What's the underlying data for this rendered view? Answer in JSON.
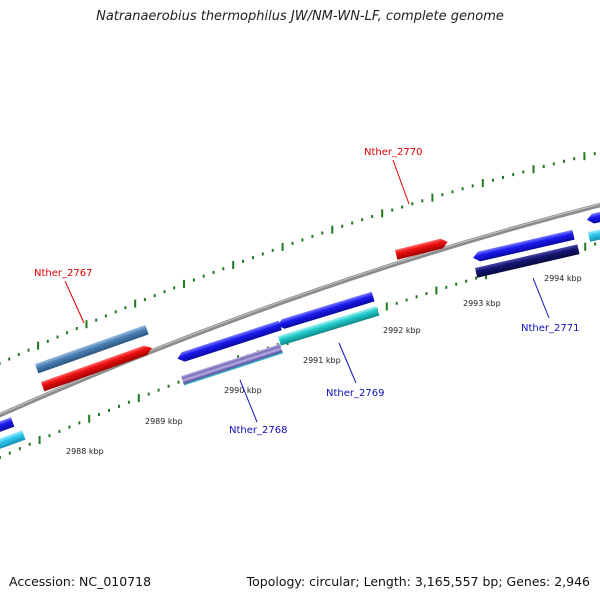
{
  "title": "Natranaerobius thermophilus JW/NM-WN-LF, complete genome",
  "footer": {
    "accession": "Accession: NC_010718",
    "topology": "Topology: circular; Length: 3,165,557 bp; Genes: 2,946"
  },
  "colors": {
    "backbone": "#8c8c8c",
    "tick": "#1d7a1d",
    "forward_red": "#ee1111",
    "forward_steel": "#4a80b4",
    "reverse_blue": "#1a1aee",
    "reverse_cyan": "#22cccc",
    "reverse_navy": "#141470",
    "reverse_lightcyan": "#2ec8ee",
    "label_red": "#dd0000",
    "label_blue": "#1010bb"
  },
  "scale_labels": [
    "2988 kbp",
    "2989 kbp",
    "2990 kbp",
    "2991 kbp",
    "2992 kbp",
    "2993 kbp",
    "2994 kbp"
  ],
  "gene_labels": [
    {
      "text": "Nther_2767",
      "color": "red"
    },
    {
      "text": "Nther_2768",
      "color": "blue"
    },
    {
      "text": "Nther_2769",
      "color": "blue"
    },
    {
      "text": "Nther_2770",
      "color": "red"
    },
    {
      "text": "Nther_2771",
      "color": "blue"
    }
  ]
}
